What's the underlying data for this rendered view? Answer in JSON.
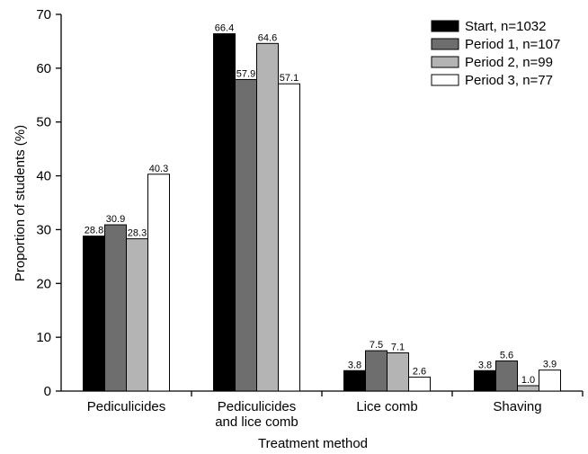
{
  "chart_data": {
    "type": "bar",
    "xlabel": "Treatment method",
    "ylabel": "Proportion of students (%)",
    "ylim": [
      0,
      70
    ],
    "yticks": [
      0,
      10,
      20,
      30,
      40,
      50,
      60,
      70
    ],
    "categories": [
      [
        "Pediculicides"
      ],
      [
        "Pediculicides",
        "and lice comb"
      ],
      [
        "Lice comb"
      ],
      [
        "Shaving"
      ]
    ],
    "series": [
      {
        "name": "Start, n=1032",
        "color": "#000000",
        "values": [
          28.8,
          66.4,
          3.8,
          3.8
        ],
        "labels": [
          "28.8",
          "66.4",
          "3.8",
          "3.8"
        ]
      },
      {
        "name": "Period 1, n=107",
        "color": "#6e6e6e",
        "values": [
          30.9,
          57.9,
          7.5,
          5.6
        ],
        "labels": [
          "30.9",
          "57.9",
          "7.5",
          "5.6"
        ]
      },
      {
        "name": "Period 2, n=99",
        "color": "#b4b4b4",
        "values": [
          28.3,
          64.6,
          7.1,
          1.0
        ],
        "labels": [
          "28.3",
          "64.6",
          "7.1",
          "1.0"
        ]
      },
      {
        "name": "Period 3, n=77",
        "color": "#ffffff",
        "values": [
          40.3,
          57.1,
          2.6,
          3.9
        ],
        "labels": [
          "40.3",
          "57.1",
          "2.6",
          "3.9"
        ]
      }
    ],
    "legend_position": "top-right",
    "grid": false
  }
}
